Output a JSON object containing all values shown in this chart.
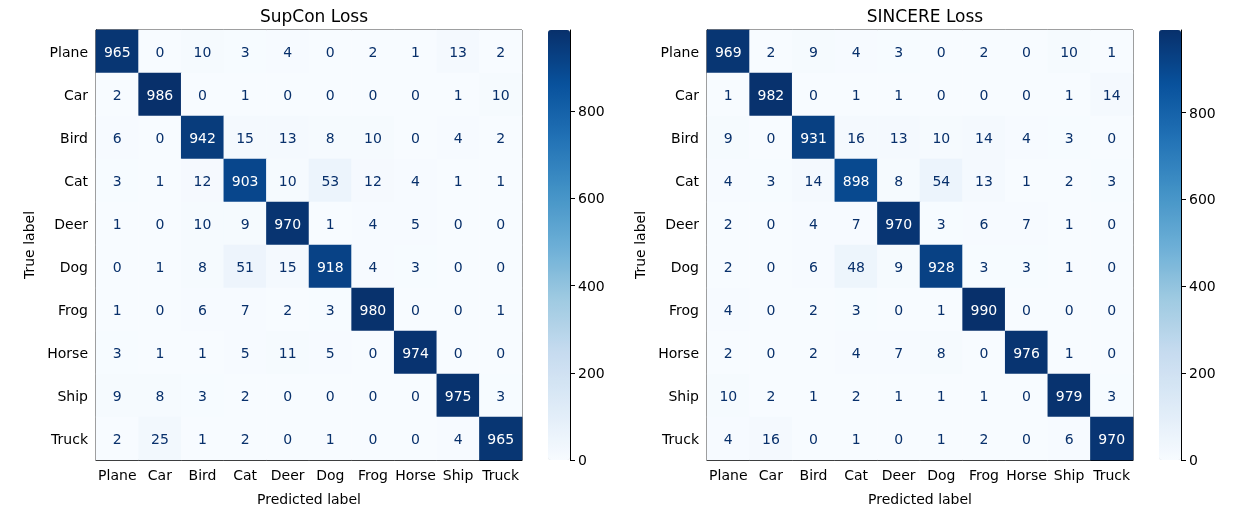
{
  "chart_data": [
    {
      "type": "heatmap",
      "title": "SupCon Loss",
      "xlabel": "Predicted label",
      "ylabel": "True label",
      "categories": [
        "Plane",
        "Car",
        "Bird",
        "Cat",
        "Deer",
        "Dog",
        "Frog",
        "Horse",
        "Ship",
        "Truck"
      ],
      "y_categories": [
        "Plane",
        "Car",
        "Bird",
        "Cat",
        "Deer",
        "Dog",
        "Frog",
        "Horse",
        "Ship",
        "Truck"
      ],
      "cells": [
        [
          965,
          0,
          10,
          3,
          4,
          0,
          2,
          1,
          13,
          2
        ],
        [
          2,
          986,
          0,
          1,
          0,
          0,
          0,
          0,
          1,
          10
        ],
        [
          6,
          0,
          942,
          15,
          13,
          8,
          10,
          0,
          4,
          2
        ],
        [
          3,
          1,
          12,
          903,
          10,
          53,
          12,
          4,
          1,
          1
        ],
        [
          1,
          0,
          10,
          9,
          970,
          1,
          4,
          5,
          0,
          0
        ],
        [
          0,
          1,
          8,
          51,
          15,
          918,
          4,
          3,
          0,
          0
        ],
        [
          1,
          0,
          6,
          7,
          2,
          3,
          980,
          0,
          0,
          1
        ],
        [
          3,
          1,
          1,
          5,
          11,
          5,
          0,
          974,
          0,
          0
        ],
        [
          9,
          8,
          3,
          2,
          0,
          0,
          0,
          0,
          975,
          3
        ],
        [
          2,
          25,
          1,
          2,
          0,
          1,
          0,
          0,
          4,
          965
        ]
      ],
      "clim": [
        0,
        986
      ],
      "cticks": [
        0,
        200,
        400,
        600,
        800
      ],
      "data_labels": true
    },
    {
      "type": "heatmap",
      "title": "SINCERE Loss",
      "xlabel": "Predicted label",
      "ylabel": "True label",
      "categories": [
        "Plane",
        "Car",
        "Bird",
        "Cat",
        "Deer",
        "Dog",
        "Frog",
        "Horse",
        "Ship",
        "Truck"
      ],
      "y_categories": [
        "Plane",
        "Car",
        "Bird",
        "Cat",
        "Deer",
        "Dog",
        "Frog",
        "Horse",
        "Ship",
        "Truck"
      ],
      "cells": [
        [
          969,
          2,
          9,
          4,
          3,
          0,
          2,
          0,
          10,
          1
        ],
        [
          1,
          982,
          0,
          1,
          1,
          0,
          0,
          0,
          1,
          14
        ],
        [
          9,
          0,
          931,
          16,
          13,
          10,
          14,
          4,
          3,
          0
        ],
        [
          4,
          3,
          14,
          898,
          8,
          54,
          13,
          1,
          2,
          3
        ],
        [
          2,
          0,
          4,
          7,
          970,
          3,
          6,
          7,
          1,
          0
        ],
        [
          2,
          0,
          6,
          48,
          9,
          928,
          3,
          3,
          1,
          0
        ],
        [
          4,
          0,
          2,
          3,
          0,
          1,
          990,
          0,
          0,
          0
        ],
        [
          2,
          0,
          2,
          4,
          7,
          8,
          0,
          976,
          1,
          0
        ],
        [
          10,
          2,
          1,
          2,
          1,
          1,
          1,
          0,
          979,
          3
        ],
        [
          4,
          16,
          0,
          1,
          0,
          1,
          2,
          0,
          6,
          970
        ]
      ],
      "clim": [
        0,
        990
      ],
      "cticks": [
        0,
        200,
        400,
        600,
        800
      ],
      "data_labels": true
    }
  ]
}
